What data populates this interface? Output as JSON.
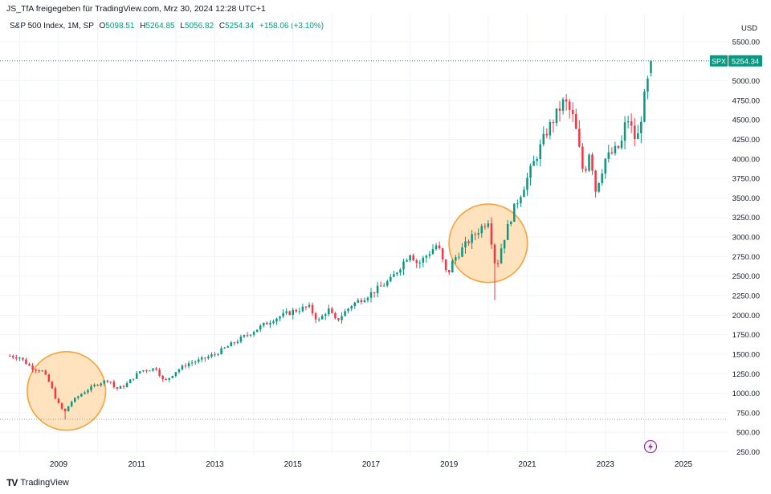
{
  "header": {
    "share_text": "JS_TfA freigegeben für TradingView.com, Mrz 30, 2024 12:28 UTC+1"
  },
  "legend": {
    "symbol": "S&P 500 Index, 1M, SP",
    "o_label": "O",
    "o_value": "5098.51",
    "h_label": "H",
    "h_value": "5264.85",
    "l_label": "L",
    "l_value": "5056.82",
    "c_label": "C",
    "c_value": "5254.34",
    "change": "+158.06 (+3.10%)"
  },
  "footer": {
    "logo": "TV",
    "brand": "TradingView"
  },
  "colors": {
    "up": "#089981",
    "down": "#F23645",
    "circle_fill": "#FFE0B8",
    "circle_stroke": "#F7A23A",
    "grid": "#F0F3FA",
    "text": "#131722",
    "badge": "#089981",
    "flash": "#9C27B0"
  },
  "price_badge": {
    "symbol": "SPX",
    "price": "5254.34"
  },
  "icons": {
    "flash": "lightning-icon"
  },
  "chart_data": {
    "type": "candlestick",
    "interval": "1M",
    "currency": "USD",
    "y_ticks": [
      250,
      500,
      750,
      1000,
      1250,
      1500,
      1750,
      2000,
      2250,
      2500,
      2750,
      3000,
      3250,
      3500,
      3750,
      4000,
      4250,
      4500,
      4750,
      5000,
      5500
    ],
    "y_tick_labels": [
      "250.00",
      "500.00",
      "750.00",
      "1000.00",
      "1250.00",
      "1500.00",
      "1750.00",
      "2000.00",
      "2250.00",
      "2500.00",
      "2750.00",
      "3000.00",
      "3250.00",
      "3500.00",
      "3750.00",
      "4000.00",
      "4250.00",
      "4500.00",
      "4750.00",
      "5000.00",
      "5500.00"
    ],
    "y_range": [
      250,
      5560
    ],
    "x_range": [
      2007.6,
      2026.0
    ],
    "x_ticks": [
      "2009",
      "2011",
      "2013",
      "2015",
      "2017",
      "2019",
      "2021",
      "2023",
      "2025"
    ],
    "grid": true,
    "current_price": 5254.34,
    "horizontal_levels": [
      5254.34,
      667
    ],
    "highlights": [
      {
        "center_date": 2009.2,
        "center_price": 1030,
        "radius_years": 1.95
      },
      {
        "center_date": 2020.0,
        "center_price": 2920,
        "radius_years": 1.95
      }
    ],
    "anchors": [
      [
        2007.75,
        1480
      ],
      [
        2008.0,
        1460
      ],
      [
        2008.3,
        1330
      ],
      [
        2008.6,
        1280
      ],
      [
        2008.8,
        1100
      ],
      [
        2008.95,
        900
      ],
      [
        2009.15,
        750
      ],
      [
        2009.3,
        880
      ],
      [
        2009.6,
        1000
      ],
      [
        2009.95,
        1110
      ],
      [
        2010.3,
        1180
      ],
      [
        2010.45,
        1050
      ],
      [
        2010.7,
        1100
      ],
      [
        2011.1,
        1290
      ],
      [
        2011.5,
        1320
      ],
      [
        2011.7,
        1140
      ],
      [
        2012.0,
        1280
      ],
      [
        2012.3,
        1380
      ],
      [
        2012.6,
        1420
      ],
      [
        2013.0,
        1500
      ],
      [
        2013.5,
        1650
      ],
      [
        2014.0,
        1800
      ],
      [
        2014.5,
        1950
      ],
      [
        2015.0,
        2050
      ],
      [
        2015.4,
        2110
      ],
      [
        2015.65,
        1920
      ],
      [
        2015.9,
        2080
      ],
      [
        2016.1,
        1920
      ],
      [
        2016.5,
        2130
      ],
      [
        2017.0,
        2280
      ],
      [
        2017.5,
        2450
      ],
      [
        2018.0,
        2800
      ],
      [
        2018.2,
        2650
      ],
      [
        2018.7,
        2910
      ],
      [
        2018.95,
        2500
      ],
      [
        2019.1,
        2700
      ],
      [
        2019.5,
        2950
      ],
      [
        2020.0,
        3220
      ],
      [
        2020.2,
        2580
      ],
      [
        2020.35,
        2900
      ],
      [
        2020.65,
        3350
      ],
      [
        2021.0,
        3750
      ],
      [
        2021.5,
        4350
      ],
      [
        2021.95,
        4750
      ],
      [
        2022.2,
        4500
      ],
      [
        2022.45,
        3780
      ],
      [
        2022.6,
        4130
      ],
      [
        2022.75,
        3600
      ],
      [
        2023.0,
        4000
      ],
      [
        2023.4,
        4170
      ],
      [
        2023.55,
        4550
      ],
      [
        2023.8,
        4200
      ],
      [
        2024.0,
        4780
      ],
      [
        2024.2,
        5254.34
      ]
    ]
  }
}
